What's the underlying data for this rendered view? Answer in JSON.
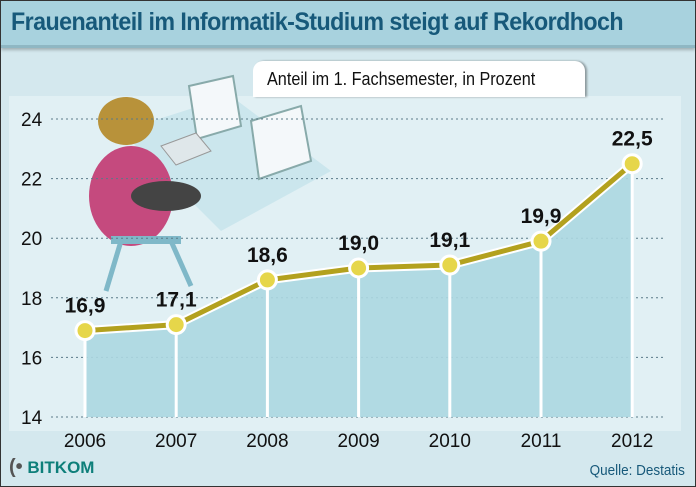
{
  "chart_data": {
    "type": "line",
    "title": "Frauenanteil im Informatik-Studium steigt auf Rekordhoch",
    "subtitle": "Anteil im 1. Fachsemester, in Prozent",
    "categories": [
      "2006",
      "2007",
      "2008",
      "2009",
      "2010",
      "2011",
      "2012"
    ],
    "values": [
      16.9,
      17.1,
      18.6,
      19.0,
      19.1,
      19.9,
      22.5
    ],
    "data_labels": [
      "16,9",
      "17,1",
      "18,6",
      "19,0",
      "19,1",
      "19,9",
      "22,5"
    ],
    "yticks": [
      "14",
      "16",
      "18",
      "20",
      "22",
      "24"
    ],
    "ylim": [
      14,
      24
    ],
    "grid": "horizontal dotted",
    "xlabel": "",
    "ylabel": "",
    "colors": {
      "line": "#b3a11e",
      "marker": "#e6d64a",
      "area": "#acd7e1",
      "title": "#17597a"
    }
  },
  "source": "Quelle: Destatis",
  "logo": "BITKOM"
}
